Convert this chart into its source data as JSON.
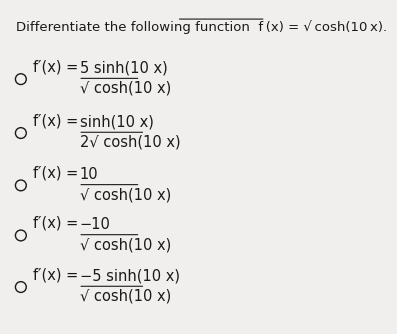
{
  "title_plain": "Differentiate the following function  f (x) = √‾‾cosh(10 x).",
  "title_part1": "Differentiate the following function  ",
  "title_part2": "f (x) = √ cosh(10 x).",
  "bg_color": "#f0efed",
  "text_color": "#1a1a1a",
  "circle_color": "#1a1a1a",
  "title_fontsize": 9.5,
  "option_fontsize": 10.5,
  "options": [
    {
      "numerator": "−5 sinh(10 x)",
      "denominator": "√ cosh(10 x)"
    },
    {
      "numerator": "−10",
      "denominator": "√ cosh(10 x)"
    },
    {
      "numerator": "10",
      "denominator": "√ cosh(10 x)"
    },
    {
      "numerator": "sinh(10 x)",
      "denominator": "2√ cosh(10 x)"
    },
    {
      "numerator": "5 sinh(10 x)",
      "denominator": "√ cosh(10 x)"
    }
  ],
  "option_prefix": "f′(x) = "
}
